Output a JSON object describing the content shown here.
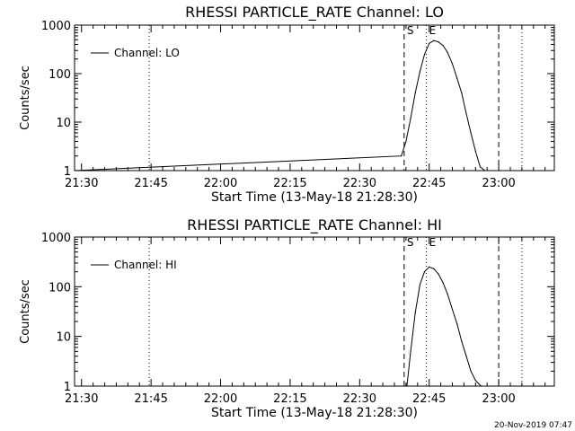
{
  "footer_stamp": "20-Nov-2019 07:47",
  "chart_data": [
    {
      "type": "line",
      "title": "RHESSI PARTICLE_RATE Channel: LO",
      "xlabel": "Start Time (13-May-18 21:28:30)",
      "ylabel": "Counts/sec",
      "yscale": "log",
      "ylim": [
        1,
        1000
      ],
      "y_ticks": [
        "1",
        "10",
        "100",
        "1000"
      ],
      "x_ticks": [
        "21:30",
        "21:45",
        "22:00",
        "22:15",
        "22:30",
        "22:45",
        "23:00"
      ],
      "x_tick_minutes": [
        90,
        105,
        120,
        135,
        150,
        165,
        180
      ],
      "xlim_minutes": [
        88.5,
        192
      ],
      "legend": {
        "position": "top-left",
        "label": "Channel: LO"
      },
      "markers": [
        {
          "label": "S",
          "minute": 159.6,
          "style": "dashed"
        },
        {
          "label": "",
          "minute": 180.0,
          "style": "dashed"
        },
        {
          "label": "E",
          "minute": 164.4,
          "style": "dotted"
        },
        {
          "label": "",
          "minute": 104.6,
          "style": "dotted"
        },
        {
          "label": "",
          "minute": 185.0,
          "style": "dotted"
        }
      ],
      "series": [
        {
          "name": "Channel: LO",
          "x": [
            88.5,
            159.0,
            160.0,
            161.0,
            162.0,
            163.0,
            164.0,
            165.0,
            166.0,
            167.0,
            168.0,
            169.0,
            170.0,
            171.0,
            172.0,
            173.0,
            174.0,
            175.0,
            176.0,
            177.0,
            178.5
          ],
          "y": [
            1,
            2,
            4,
            12,
            40,
            110,
            250,
            420,
            480,
            450,
            380,
            270,
            160,
            80,
            40,
            15,
            6,
            2.5,
            1.2,
            1,
            1
          ]
        }
      ]
    },
    {
      "type": "line",
      "title": "RHESSI PARTICLE_RATE Channel: HI",
      "xlabel": "Start Time (13-May-18 21:28:30)",
      "ylabel": "Counts/sec",
      "yscale": "log",
      "ylim": [
        1,
        1000
      ],
      "y_ticks": [
        "1",
        "10",
        "100",
        "1000"
      ],
      "x_ticks": [
        "21:30",
        "21:45",
        "22:00",
        "22:15",
        "22:30",
        "22:45",
        "23:00"
      ],
      "x_tick_minutes": [
        90,
        105,
        120,
        135,
        150,
        165,
        180
      ],
      "xlim_minutes": [
        88.5,
        192
      ],
      "legend": {
        "position": "top-left",
        "label": "Channel: HI"
      },
      "markers": [
        {
          "label": "S",
          "minute": 159.6,
          "style": "dashed"
        },
        {
          "label": "",
          "minute": 180.0,
          "style": "dashed"
        },
        {
          "label": "E",
          "minute": 164.4,
          "style": "dotted"
        },
        {
          "label": "",
          "minute": 104.6,
          "style": "dotted"
        },
        {
          "label": "",
          "minute": 185.0,
          "style": "dotted"
        }
      ],
      "series": [
        {
          "name": "Channel: HI",
          "x": [
            160.2,
            161.0,
            162.0,
            163.0,
            164.0,
            165.0,
            166.0,
            167.0,
            168.0,
            169.0,
            170.0,
            171.0,
            172.0,
            173.0,
            174.0,
            175.0,
            176.2
          ],
          "y": [
            1,
            5,
            30,
            110,
            200,
            250,
            230,
            180,
            120,
            70,
            35,
            18,
            8,
            4,
            2,
            1.3,
            1
          ]
        }
      ]
    }
  ]
}
